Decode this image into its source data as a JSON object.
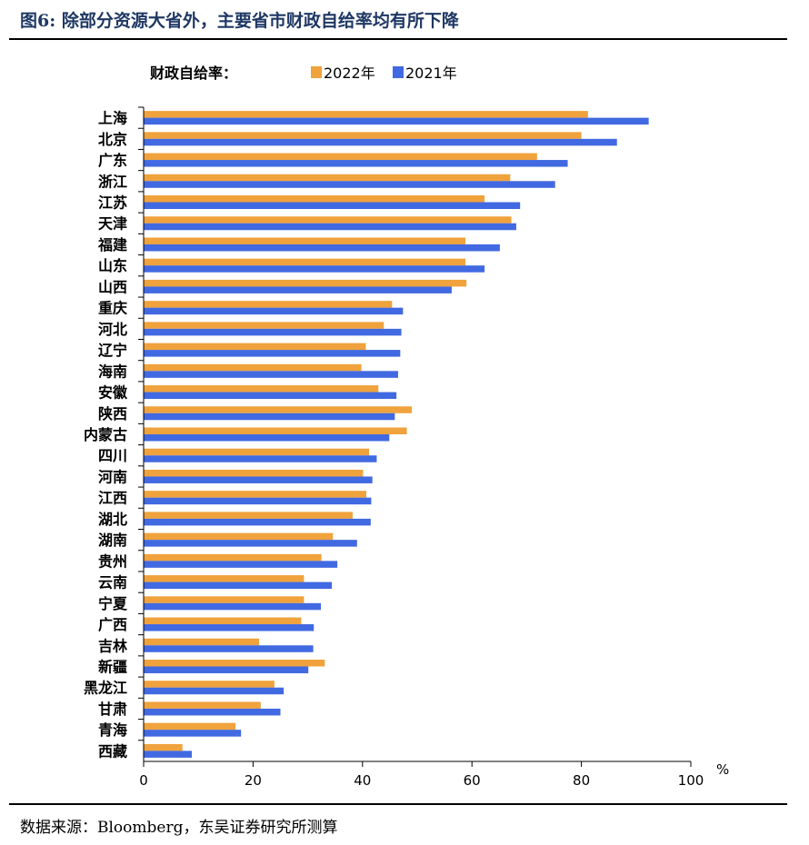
{
  "header": {
    "figure_title": "图6:  除部分资源大省外，主要省市财政自给率均有所下降"
  },
  "footer": {
    "source": "数据来源：Bloomberg，东吴证券研究所测算"
  },
  "chart_data": {
    "type": "bar",
    "orientation": "horizontal",
    "legend_title": "财政自给率：",
    "legend_placement": "top",
    "unit_label": "%",
    "xlim": [
      0,
      100
    ],
    "x_ticks": [
      0,
      20,
      40,
      60,
      80,
      100
    ],
    "grid": false,
    "categories": [
      "上海",
      "北京",
      "广东",
      "浙江",
      "江苏",
      "天津",
      "福建",
      "山东",
      "山西",
      "重庆",
      "河北",
      "辽宁",
      "海南",
      "安徽",
      "陕西",
      "内蒙古",
      "四川",
      "河南",
      "江西",
      "湖北",
      "湖南",
      "贵州",
      "云南",
      "宁夏",
      "广西",
      "吉林",
      "新疆",
      "黑龙江",
      "甘肃",
      "青海",
      "西藏"
    ],
    "series": [
      {
        "name": "2022年",
        "color": "#f0a23c",
        "values": [
          81.2,
          80.0,
          71.9,
          67.0,
          62.3,
          67.2,
          58.8,
          58.8,
          59.0,
          45.4,
          43.9,
          40.6,
          39.8,
          42.9,
          49.0,
          48.1,
          41.2,
          40.1,
          40.7,
          38.2,
          34.6,
          32.5,
          29.3,
          29.3,
          28.8,
          21.1,
          33.1,
          23.9,
          21.4,
          16.8,
          7.1
        ]
      },
      {
        "name": "2021年",
        "color": "#4169e1",
        "values": [
          92.3,
          86.5,
          77.5,
          75.2,
          68.8,
          68.1,
          65.1,
          62.3,
          56.3,
          47.4,
          47.1,
          46.9,
          46.5,
          46.2,
          45.9,
          44.9,
          42.6,
          41.8,
          41.6,
          41.5,
          39.0,
          35.4,
          34.4,
          32.4,
          31.1,
          31.0,
          30.1,
          25.6,
          25.0,
          17.8,
          8.8
        ]
      }
    ]
  }
}
